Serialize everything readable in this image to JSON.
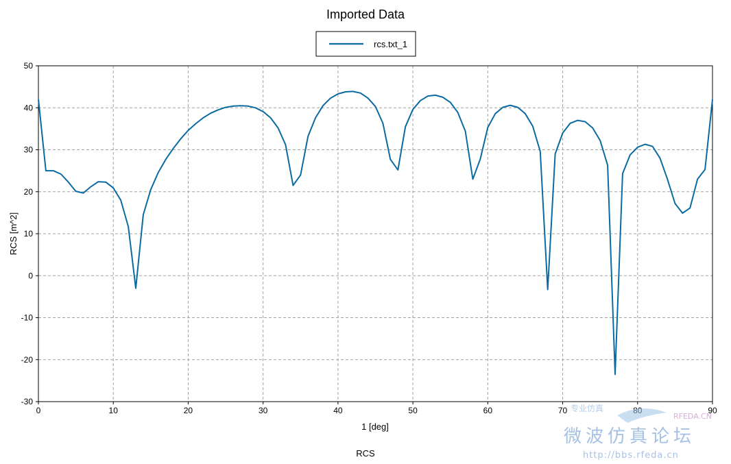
{
  "chart_data": {
    "type": "line",
    "title": "Imported Data",
    "xlabel": "1 [deg]",
    "ylabel": "RCS [m^2]",
    "footer": "RCS",
    "xlim": [
      0,
      90
    ],
    "ylim": [
      -30,
      50
    ],
    "x_ticks": [
      0,
      10,
      20,
      30,
      40,
      50,
      60,
      70,
      80,
      90
    ],
    "y_ticks": [
      -30,
      -20,
      -10,
      0,
      10,
      20,
      30,
      40,
      50
    ],
    "grid": true,
    "legend_position": "top-center",
    "series": [
      {
        "name": "rcs.txt_1",
        "color": "#0a6aa1",
        "x": [
          0,
          1,
          2,
          3,
          4,
          5,
          6,
          7,
          8,
          9,
          10,
          11,
          12,
          13,
          14,
          15,
          16,
          17,
          18,
          19,
          20,
          21,
          22,
          23,
          24,
          25,
          26,
          27,
          28,
          29,
          30,
          31,
          32,
          33,
          34,
          35,
          36,
          37,
          38,
          39,
          40,
          41,
          42,
          43,
          44,
          45,
          46,
          47,
          48,
          49,
          50,
          51,
          52,
          53,
          54,
          55,
          56,
          57,
          58,
          59,
          60,
          61,
          62,
          63,
          64,
          65,
          66,
          67,
          68,
          69,
          70,
          71,
          72,
          73,
          74,
          75,
          76,
          77,
          78,
          79,
          80,
          81,
          82,
          83,
          84,
          85,
          86,
          87,
          88,
          89,
          90
        ],
        "y": [
          42,
          25,
          25,
          24.2,
          22.3,
          20.1,
          19.7,
          21.2,
          22.4,
          22.3,
          20.9,
          18,
          11.7,
          -3,
          14.5,
          20.5,
          24.6,
          27.7,
          30.3,
          32.6,
          34.6,
          36.2,
          37.6,
          38.7,
          39.5,
          40.1,
          40.4,
          40.5,
          40.4,
          40,
          39.1,
          37.6,
          35.2,
          31.2,
          21.5,
          24,
          33.2,
          37.6,
          40.5,
          42.3,
          43.3,
          43.8,
          43.9,
          43.5,
          42.3,
          40.3,
          36.3,
          27.7,
          25.2,
          35.5,
          39.6,
          41.7,
          42.8,
          43,
          42.5,
          41.3,
          38.9,
          34.4,
          23,
          27.8,
          35.3,
          38.6,
          40.1,
          40.6,
          40.1,
          38.6,
          35.6,
          29.6,
          -3.3,
          29,
          34,
          36.3,
          37,
          36.7,
          35.2,
          32.2,
          26.3,
          -23.5,
          24.3,
          28.8,
          30.6,
          31.3,
          30.8,
          28,
          22.9,
          17.2,
          14.9,
          16.1,
          23,
          25.3,
          42
        ]
      }
    ]
  },
  "watermark": {
    "brand": "RFEDA.CN",
    "slogan_cn": "专业仿真",
    "chinese": "微波仿真论坛",
    "url": "http://bbs.rfeda.cn"
  }
}
